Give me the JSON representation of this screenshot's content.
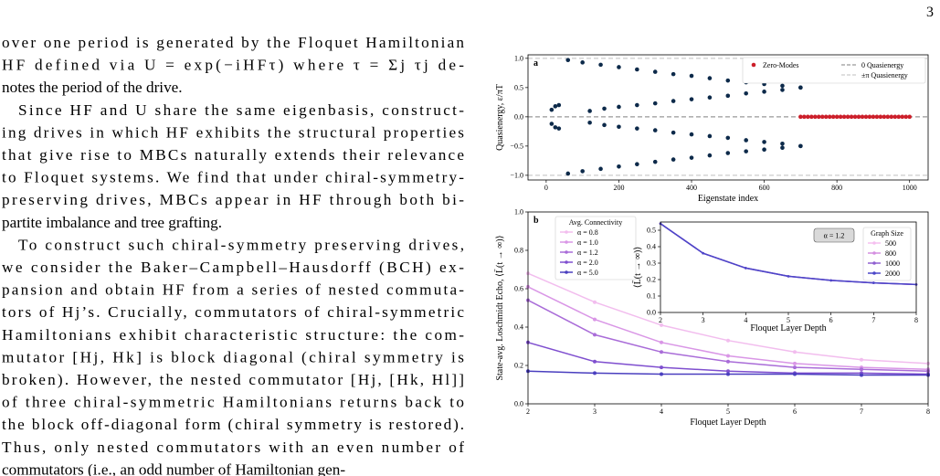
{
  "page_number": "3",
  "body": {
    "lines": [
      "over one period is generated by the Floquet Hamiltonian",
      "HF defined via U = exp(−iHFτ) where τ = Σj τj de-",
      "notes the period of the drive.",
      "Since HF and U share the same eigenbasis, construct-",
      "ing drives in which HF exhibits the structural properties",
      "that give rise to MBCs naturally extends their relevance",
      "to Floquet systems. We find that under chiral-symmetry-",
      "preserving drives, MBCs appear in HF through both bi-",
      "partite imbalance and tree grafting.",
      "To construct such chiral-symmetry preserving drives,",
      "we consider the Baker–Campbell–Hausdorff (BCH) ex-",
      "pansion and obtain HF from a series of nested commuta-",
      "tors of Hj’s. Crucially, commutators of chiral-symmetric",
      "Hamiltonians exhibit characteristic structure: the com-",
      "mutator [Hj, Hk] is block diagonal (chiral symmetry is",
      "broken). However, the nested commutator [Hj, [Hk, Hl]]",
      "of three chiral-symmetric Hamiltonians returns back to",
      "the block off-diagonal form (chiral symmetry is restored).",
      "Thus, only nested commutators with an even number of",
      "commutators (i.e., an odd number of Hamiltonian gen-"
    ]
  },
  "figure": [
    {
      "type": "scatter",
      "panel": "a",
      "xlabel": "Eigenstate index",
      "ylabel": "Quasienergy, ε/πT",
      "xlim": [
        -50,
        1051
      ],
      "ylim": [
        -1.08,
        1.06
      ],
      "xticks": [
        0,
        200,
        400,
        600,
        800,
        1000
      ],
      "yticks": [
        {
          "value": -1,
          "label": "−1.0"
        },
        {
          "value": -0.5,
          "label": "−0.5"
        },
        {
          "value": 0,
          "label": "0.0"
        },
        {
          "value": 0.5,
          "label": "0.5"
        },
        {
          "value": 1,
          "label": "1.0"
        }
      ],
      "hlines": [
        {
          "name": "0 Quasienergy",
          "color": "#999999",
          "values": [
            0
          ]
        },
        {
          "name": "±π Quasienergy",
          "color": "#cccccc",
          "values": [
            -1,
            1
          ]
        }
      ],
      "series": [
        {
          "color": "#0d2a4a",
          "x": [
            15,
            25,
            35,
            60,
            100,
            150,
            200,
            250,
            300,
            350,
            400,
            450,
            500,
            550,
            600,
            650,
            700,
            120,
            160,
            200,
            250,
            300,
            350,
            400,
            450,
            500,
            550,
            600,
            650,
            700,
            15,
            25,
            35,
            60,
            100,
            150,
            200,
            250,
            300,
            350,
            400,
            450,
            500,
            550,
            600,
            650,
            700,
            120,
            160,
            200,
            250,
            300,
            350,
            400,
            450,
            500,
            550,
            600,
            650,
            700
          ],
          "y": [
            0.12,
            0.18,
            0.2,
            0.97,
            0.93,
            0.89,
            0.85,
            0.81,
            0.77,
            0.73,
            0.7,
            0.66,
            0.62,
            0.59,
            0.56,
            0.53,
            0.5,
            0.1,
            0.14,
            0.17,
            0.2,
            0.23,
            0.27,
            0.3,
            0.33,
            0.36,
            0.4,
            0.43,
            0.46,
            0.5,
            -0.12,
            -0.18,
            -0.2,
            -0.97,
            -0.93,
            -0.89,
            -0.85,
            -0.81,
            -0.77,
            -0.73,
            -0.7,
            -0.66,
            -0.62,
            -0.59,
            -0.56,
            -0.53,
            -0.5,
            -0.1,
            -0.14,
            -0.17,
            -0.2,
            -0.23,
            -0.27,
            -0.3,
            -0.33,
            -0.36,
            -0.4,
            -0.43,
            -0.46,
            -0.5
          ]
        },
        {
          "name": "Zero-Modes",
          "color": "#cc1f2a",
          "x": [
            700,
            710,
            720,
            730,
            740,
            750,
            760,
            770,
            780,
            790,
            800,
            810,
            820,
            830,
            840,
            850,
            860,
            870,
            880,
            890,
            900,
            910,
            920,
            930,
            940,
            950,
            960,
            970,
            980,
            990,
            1000
          ],
          "y": [
            0,
            0,
            0,
            0,
            0,
            0,
            0,
            0,
            0,
            0,
            0,
            0,
            0,
            0,
            0,
            0,
            0,
            0,
            0,
            0,
            0,
            0,
            0,
            0,
            0,
            0,
            0,
            0,
            0,
            0,
            0
          ]
        }
      ]
    },
    {
      "type": "line",
      "panel": "b",
      "xlabel": "Floquet Layer Depth",
      "ylabel": "State-avg. Loschmidt Echo, ⟨L̄(t → ∞)⟩",
      "legend_title": "Avg. Connectivity",
      "xlim": [
        2,
        8
      ],
      "ylim": [
        0,
        1
      ],
      "xticks": [
        2,
        3,
        4,
        5,
        6,
        7,
        8
      ],
      "yticks": [
        {
          "value": 0,
          "label": "0.0"
        },
        {
          "value": 0.2,
          "label": "0.2"
        },
        {
          "value": 0.4,
          "label": "0.4"
        },
        {
          "value": 0.6,
          "label": "0.6"
        },
        {
          "value": 0.8,
          "label": "0.8"
        },
        {
          "value": 1,
          "label": "1.0"
        }
      ],
      "x": [
        2,
        3,
        4,
        5,
        6,
        7,
        8
      ],
      "series": [
        {
          "name": "α = 0.8",
          "color": "#f2bdee",
          "values": [
            0.68,
            0.53,
            0.41,
            0.33,
            0.27,
            0.23,
            0.21
          ]
        },
        {
          "name": "α = 1.0",
          "color": "#d996e6",
          "values": [
            0.61,
            0.44,
            0.32,
            0.25,
            0.21,
            0.19,
            0.18
          ]
        },
        {
          "name": "α = 1.2",
          "color": "#a96cd8",
          "values": [
            0.54,
            0.36,
            0.27,
            0.22,
            0.19,
            0.18,
            0.17
          ]
        },
        {
          "name": "α = 2.0",
          "color": "#7f4fcf",
          "values": [
            0.32,
            0.22,
            0.19,
            0.17,
            0.16,
            0.16,
            0.155
          ]
        },
        {
          "name": "α = 5.0",
          "color": "#4a3fbf",
          "values": [
            0.17,
            0.16,
            0.155,
            0.155,
            0.155,
            0.15,
            0.15
          ]
        }
      ]
    },
    {
      "type": "line",
      "panel": "inset",
      "xlabel": "Floquet Layer Depth",
      "ylabel": "⟨L̄(t → ∞)⟩",
      "legend_title": "Graph Size",
      "annotation": "α = 1.2",
      "xlim": [
        2,
        8
      ],
      "ylim": [
        0,
        0.55
      ],
      "xticks": [
        2,
        3,
        4,
        5,
        6,
        7,
        8
      ],
      "yticks": [
        {
          "value": 0,
          "label": "0.0"
        },
        0.1,
        0.2,
        0.3,
        0.4,
        0.5
      ],
      "x": [
        2,
        3,
        4,
        5,
        6,
        7,
        8
      ],
      "series": [
        {
          "name": "500",
          "color": "#f5c0f0",
          "values": [
            0.54,
            0.36,
            0.27,
            0.22,
            0.195,
            0.18,
            0.17
          ]
        },
        {
          "name": "800",
          "color": "#d48fe0",
          "values": [
            0.54,
            0.36,
            0.27,
            0.22,
            0.195,
            0.18,
            0.17
          ]
        },
        {
          "name": "1000",
          "color": "#9060d0",
          "values": [
            0.54,
            0.36,
            0.27,
            0.22,
            0.195,
            0.18,
            0.17
          ]
        },
        {
          "name": "2000",
          "color": "#4b46c8",
          "values": [
            0.54,
            0.36,
            0.27,
            0.22,
            0.195,
            0.18,
            0.17
          ]
        }
      ]
    }
  ]
}
